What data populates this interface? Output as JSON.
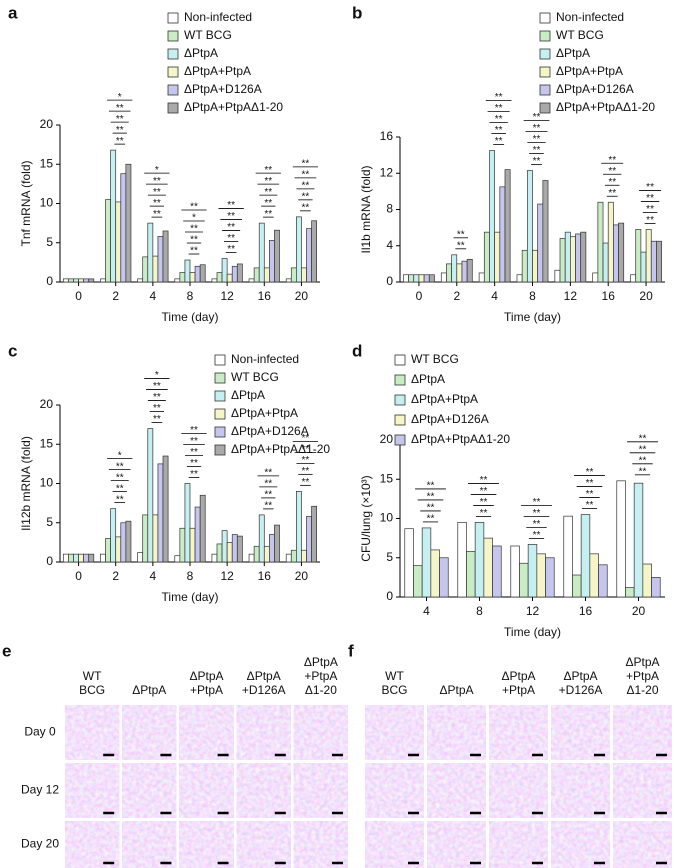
{
  "chart_data": [
    {
      "type": "bar",
      "panel": "a",
      "y_label": "Tnf mRNA (fold)",
      "x_label": "Time (day)",
      "categories": [
        "0",
        "2",
        "4",
        "8",
        "12",
        "16",
        "20"
      ],
      "ylim": [
        0,
        20
      ],
      "yticks": [
        0,
        5,
        10,
        15,
        20
      ],
      "series": [
        {
          "name": "Non-infected",
          "color": "#ffffff",
          "values": [
            0.4,
            0.4,
            0.4,
            0.4,
            0.4,
            0.4,
            0.4
          ]
        },
        {
          "name": "WT BCG",
          "color": "#c9ecc4",
          "values": [
            0.4,
            10.5,
            3.2,
            1.2,
            1.2,
            1.8,
            1.8
          ]
        },
        {
          "name": "ΔPtpA",
          "color": "#c6eff2",
          "values": [
            0.4,
            16.8,
            7.5,
            2.8,
            3.0,
            7.5,
            8.3
          ]
        },
        {
          "name": "ΔPtpA+PtpA",
          "color": "#f6f5c8",
          "values": [
            0.4,
            10.2,
            3.3,
            1.2,
            1.0,
            1.8,
            1.8
          ]
        },
        {
          "name": "ΔPtpA+D126A",
          "color": "#c5c5ee",
          "values": [
            0.4,
            13.8,
            5.8,
            2.0,
            2.0,
            5.3,
            6.8
          ]
        },
        {
          "name": "ΔPtpA+PtpAΔ1-20",
          "color": "#a9a9a9",
          "values": [
            0.4,
            15.0,
            6.5,
            2.2,
            2.3,
            6.6,
            7.8
          ]
        }
      ],
      "significance": [
        [],
        [
          "**",
          "**",
          "**",
          "**",
          "*"
        ],
        [
          "**",
          "**",
          "**",
          "**",
          "*"
        ],
        [
          "**",
          "**",
          "**",
          "*",
          "**"
        ],
        [
          "**",
          "**",
          "**",
          "**",
          "**"
        ],
        [
          "**",
          "**",
          "**",
          "**",
          "**"
        ],
        [
          "**",
          "**",
          "**",
          "**",
          "**"
        ]
      ]
    },
    {
      "type": "bar",
      "panel": "b",
      "y_label": "Il1b mRNA (fold)",
      "x_label": "Time (day)",
      "categories": [
        "0",
        "2",
        "4",
        "8",
        "12",
        "16",
        "20"
      ],
      "ylim": [
        0,
        16
      ],
      "yticks": [
        0,
        4,
        8,
        12,
        16
      ],
      "series": [
        {
          "name": "Non-infected",
          "color": "#ffffff",
          "values": [
            0.8,
            1.0,
            1.0,
            0.8,
            1.3,
            1.0,
            0.8
          ]
        },
        {
          "name": "WT BCG",
          "color": "#c9ecc4",
          "values": [
            0.8,
            2.0,
            5.5,
            3.5,
            4.8,
            8.8,
            5.8
          ]
        },
        {
          "name": "ΔPtpA",
          "color": "#c6eff2",
          "values": [
            0.8,
            3.0,
            14.5,
            12.3,
            5.5,
            4.3,
            3.3
          ]
        },
        {
          "name": "ΔPtpA+PtpA",
          "color": "#f6f5c8",
          "values": [
            0.8,
            2.0,
            5.5,
            3.5,
            5.0,
            8.8,
            5.8
          ]
        },
        {
          "name": "ΔPtpA+D126A",
          "color": "#c5c5ee",
          "values": [
            0.8,
            2.3,
            10.5,
            8.6,
            5.3,
            6.3,
            4.5
          ]
        },
        {
          "name": "ΔPtpA+PtpAΔ1-20",
          "color": "#a9a9a9",
          "values": [
            0.8,
            2.5,
            12.4,
            11.2,
            5.5,
            6.5,
            4.5
          ]
        }
      ],
      "significance": [
        [],
        [
          "**",
          "**"
        ],
        [
          "**",
          "**",
          "**",
          "**",
          "**"
        ],
        [
          "**",
          "**",
          "**",
          "**",
          "**"
        ],
        [],
        [
          "**",
          "**",
          "**",
          "**"
        ],
        [
          "**",
          "**",
          "**",
          "**"
        ]
      ]
    },
    {
      "type": "bar",
      "panel": "c",
      "y_label": "Il12b mRNA (fold)",
      "x_label": "Time (day)",
      "categories": [
        "0",
        "2",
        "4",
        "8",
        "12",
        "16",
        "20"
      ],
      "ylim": [
        0,
        20
      ],
      "yticks": [
        0,
        5,
        10,
        15,
        20
      ],
      "series": [
        {
          "name": "Non-infected",
          "color": "#ffffff",
          "values": [
            1.0,
            1.0,
            1.2,
            0.8,
            1.0,
            1.0,
            1.0
          ]
        },
        {
          "name": "WT BCG",
          "color": "#c9ecc4",
          "values": [
            1.0,
            3.0,
            6.0,
            4.3,
            2.3,
            2.0,
            1.5
          ]
        },
        {
          "name": "ΔPtpA",
          "color": "#c6eff2",
          "values": [
            1.0,
            6.8,
            17.0,
            10.0,
            4.0,
            6.0,
            9.0
          ]
        },
        {
          "name": "ΔPtpA+PtpA",
          "color": "#f6f5c8",
          "values": [
            1.0,
            3.2,
            6.0,
            4.3,
            2.5,
            2.0,
            1.5
          ]
        },
        {
          "name": "ΔPtpA+D126A",
          "color": "#c5c5ee",
          "values": [
            1.0,
            5.0,
            12.5,
            7.0,
            3.5,
            3.5,
            5.8
          ]
        },
        {
          "name": "ΔPtpA+PtpAΔ1-20",
          "color": "#a9a9a9",
          "values": [
            1.0,
            5.2,
            13.5,
            8.5,
            3.3,
            4.7,
            7.1
          ]
        }
      ],
      "significance": [
        [],
        [
          "**",
          "**",
          "**",
          "**",
          "*"
        ],
        [
          "**",
          "**",
          "**",
          "**",
          "*"
        ],
        [
          "**",
          "**",
          "**",
          "**",
          "**"
        ],
        [],
        [
          "**",
          "**",
          "**",
          "**"
        ],
        [
          "**",
          "**",
          "**",
          "**",
          "**"
        ]
      ]
    },
    {
      "type": "bar",
      "panel": "d",
      "y_label": "CFU/lung (×10³)",
      "x_label": "Time (day)",
      "categories": [
        "4",
        "8",
        "12",
        "16",
        "20"
      ],
      "ylim": [
        0,
        20
      ],
      "yticks": [
        0,
        5,
        10,
        15,
        20
      ],
      "series": [
        {
          "name": "WT BCG",
          "color": "#ffffff",
          "values": [
            8.7,
            9.5,
            6.5,
            10.3,
            14.8
          ]
        },
        {
          "name": "ΔPtpA",
          "color": "#c9ecc4",
          "values": [
            4.0,
            5.8,
            4.3,
            2.8,
            1.2
          ]
        },
        {
          "name": "ΔPtpA+PtpA",
          "color": "#c6eff2",
          "values": [
            8.8,
            9.5,
            6.7,
            10.5,
            14.5
          ]
        },
        {
          "name": "ΔPtpA+D126A",
          "color": "#f6f5c8",
          "values": [
            6.0,
            7.5,
            5.5,
            5.5,
            4.2
          ]
        },
        {
          "name": "ΔPtpA+PtpAΔ1-20",
          "color": "#c5c5ee",
          "values": [
            5.0,
            6.5,
            5.0,
            4.1,
            2.5
          ]
        }
      ],
      "significance": [
        [
          "**",
          "**",
          "**",
          "**"
        ],
        [
          "**",
          "**",
          "**",
          "**"
        ],
        [
          "**",
          "**",
          "**",
          "**"
        ],
        [
          "**",
          "**",
          "**",
          "**"
        ],
        [
          "**",
          "**",
          "**",
          "**"
        ]
      ]
    }
  ],
  "micrographs": {
    "panels": [
      "e",
      "f"
    ],
    "columns": [
      [
        "WT",
        "BCG"
      ],
      [
        "ΔPtpA"
      ],
      [
        "ΔPtpA",
        "+PtpA"
      ],
      [
        "ΔPtpA",
        "+D126A"
      ],
      [
        "ΔPtpA",
        "+PtpA",
        "Δ1-20"
      ]
    ],
    "rows": [
      "Day 0",
      "Day 12",
      "Day 20"
    ]
  }
}
